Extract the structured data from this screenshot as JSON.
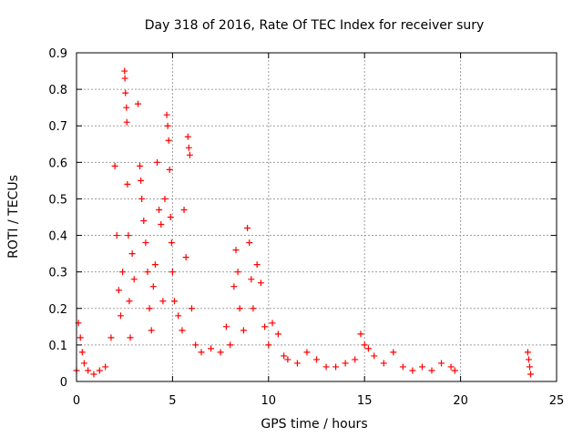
{
  "chart_data": {
    "type": "scatter",
    "title": "Day 318 of 2016, Rate Of TEC Index for receiver sury",
    "xlabel": "GPS time / hours",
    "ylabel": "ROTI / TECUs",
    "xlim": [
      0,
      25
    ],
    "ylim": [
      0,
      0.9
    ],
    "xticks": [
      "0",
      "5",
      "10",
      "15",
      "20",
      "25"
    ],
    "yticks": [
      "0",
      "0.1",
      "0.2",
      "0.3",
      "0.4",
      "0.5",
      "0.6",
      "0.7",
      "0.8",
      "0.9"
    ],
    "grid": true,
    "marker": "+",
    "color": "#ff0000",
    "points": [
      [
        0.0,
        0.03
      ],
      [
        0.1,
        0.16
      ],
      [
        0.2,
        0.12
      ],
      [
        0.3,
        0.08
      ],
      [
        0.4,
        0.05
      ],
      [
        0.6,
        0.03
      ],
      [
        0.9,
        0.02
      ],
      [
        1.2,
        0.03
      ],
      [
        1.5,
        0.04
      ],
      [
        1.8,
        0.12
      ],
      [
        2.0,
        0.59
      ],
      [
        2.1,
        0.4
      ],
      [
        2.2,
        0.25
      ],
      [
        2.3,
        0.18
      ],
      [
        2.4,
        0.3
      ],
      [
        2.5,
        0.85
      ],
      [
        2.52,
        0.83
      ],
      [
        2.55,
        0.79
      ],
      [
        2.6,
        0.75
      ],
      [
        2.62,
        0.71
      ],
      [
        2.65,
        0.54
      ],
      [
        2.7,
        0.4
      ],
      [
        2.75,
        0.22
      ],
      [
        2.8,
        0.12
      ],
      [
        2.9,
        0.35
      ],
      [
        3.0,
        0.28
      ],
      [
        3.2,
        0.76
      ],
      [
        3.3,
        0.59
      ],
      [
        3.35,
        0.55
      ],
      [
        3.4,
        0.5
      ],
      [
        3.5,
        0.44
      ],
      [
        3.6,
        0.38
      ],
      [
        3.7,
        0.3
      ],
      [
        3.8,
        0.2
      ],
      [
        3.9,
        0.14
      ],
      [
        4.0,
        0.26
      ],
      [
        4.1,
        0.32
      ],
      [
        4.2,
        0.6
      ],
      [
        4.3,
        0.47
      ],
      [
        4.4,
        0.43
      ],
      [
        4.5,
        0.22
      ],
      [
        4.6,
        0.5
      ],
      [
        4.7,
        0.73
      ],
      [
        4.75,
        0.7
      ],
      [
        4.8,
        0.66
      ],
      [
        4.85,
        0.58
      ],
      [
        4.9,
        0.45
      ],
      [
        4.95,
        0.38
      ],
      [
        5.0,
        0.3
      ],
      [
        5.1,
        0.22
      ],
      [
        5.3,
        0.18
      ],
      [
        5.5,
        0.14
      ],
      [
        5.6,
        0.47
      ],
      [
        5.7,
        0.34
      ],
      [
        5.8,
        0.67
      ],
      [
        5.85,
        0.64
      ],
      [
        5.9,
        0.62
      ],
      [
        6.0,
        0.2
      ],
      [
        6.2,
        0.1
      ],
      [
        6.5,
        0.08
      ],
      [
        7.0,
        0.09
      ],
      [
        7.5,
        0.08
      ],
      [
        7.8,
        0.15
      ],
      [
        8.0,
        0.1
      ],
      [
        8.2,
        0.26
      ],
      [
        8.3,
        0.36
      ],
      [
        8.4,
        0.3
      ],
      [
        8.5,
        0.2
      ],
      [
        8.7,
        0.14
      ],
      [
        8.9,
        0.42
      ],
      [
        9.0,
        0.38
      ],
      [
        9.1,
        0.28
      ],
      [
        9.2,
        0.2
      ],
      [
        9.4,
        0.32
      ],
      [
        9.6,
        0.27
      ],
      [
        9.8,
        0.15
      ],
      [
        10.0,
        0.1
      ],
      [
        10.2,
        0.16
      ],
      [
        10.5,
        0.13
      ],
      [
        10.8,
        0.07
      ],
      [
        11.0,
        0.06
      ],
      [
        11.5,
        0.05
      ],
      [
        12.0,
        0.08
      ],
      [
        12.5,
        0.06
      ],
      [
        13.0,
        0.04
      ],
      [
        13.5,
        0.04
      ],
      [
        14.0,
        0.05
      ],
      [
        14.5,
        0.06
      ],
      [
        14.8,
        0.13
      ],
      [
        15.0,
        0.1
      ],
      [
        15.2,
        0.09
      ],
      [
        15.5,
        0.07
      ],
      [
        16.0,
        0.05
      ],
      [
        16.5,
        0.08
      ],
      [
        17.0,
        0.04
      ],
      [
        17.5,
        0.03
      ],
      [
        18.0,
        0.04
      ],
      [
        18.5,
        0.03
      ],
      [
        19.0,
        0.05
      ],
      [
        19.5,
        0.04
      ],
      [
        19.7,
        0.03
      ],
      [
        23.5,
        0.08
      ],
      [
        23.55,
        0.06
      ],
      [
        23.6,
        0.04
      ],
      [
        23.65,
        0.02
      ]
    ]
  }
}
